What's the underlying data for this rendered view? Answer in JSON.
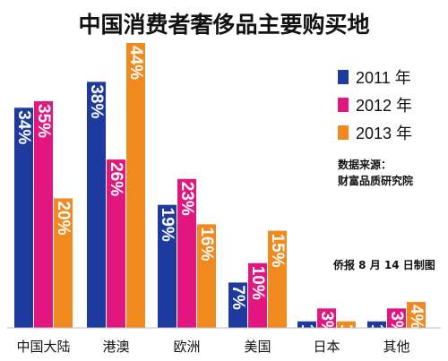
{
  "chart_data": {
    "type": "bar",
    "title": "中国消费者奢侈品主要购买地",
    "categories": [
      "中国大陆",
      "港澳",
      "欧洲",
      "美国",
      "日本",
      "其他"
    ],
    "series": [
      {
        "name": "2011 年",
        "values": [
          34,
          38,
          19,
          7,
          1,
          1
        ],
        "labels": [
          "34%",
          "38%",
          "19%",
          "7%",
          "1%",
          "1%"
        ]
      },
      {
        "name": "2012 年",
        "values": [
          35,
          26,
          23,
          10,
          3,
          3
        ],
        "labels": [
          "35%",
          "26%",
          "23%",
          "10%",
          "3%",
          "3%"
        ]
      },
      {
        "name": "2013 年",
        "values": [
          20,
          44,
          16,
          15,
          1,
          4
        ],
        "labels": [
          "20%",
          "44%",
          "16%",
          "15%",
          "1%",
          "4%"
        ]
      }
    ],
    "ylim": [
      0,
      44
    ],
    "xlabel": "",
    "ylabel": "",
    "grid": false,
    "legend_position": "top-right"
  },
  "colors": [
    "#1f3a9e",
    "#e2167f",
    "#f08a1e"
  ],
  "source": {
    "line1": "数据来源：",
    "line2": "财富品质研究院"
  },
  "credit": "侨报 8 月 14 日制图"
}
